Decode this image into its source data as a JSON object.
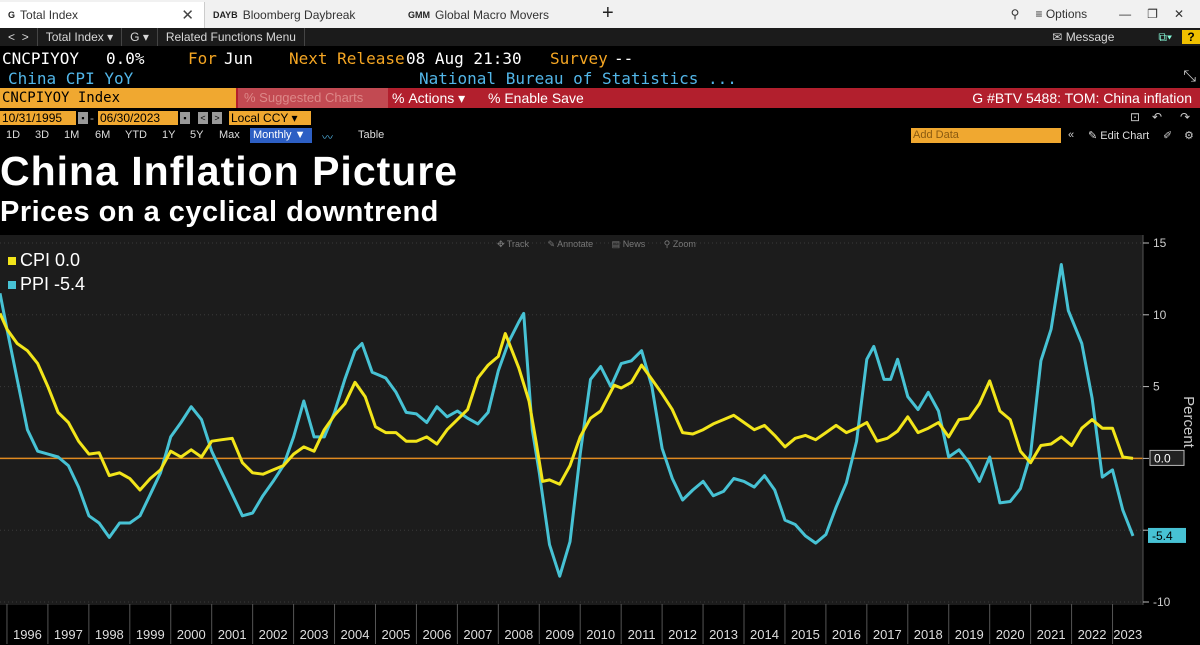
{
  "tabs": [
    {
      "code": "G",
      "label": "Total Index"
    },
    {
      "code": "DAYB",
      "label": "Bloomberg Daybreak"
    },
    {
      "code": "GMM",
      "label": "Global Macro Movers"
    }
  ],
  "window": {
    "options_label": "Options"
  },
  "menu": {
    "security": "Total Index",
    "function": "G",
    "related": "Related Functions Menu",
    "message": "Message",
    "help": "?"
  },
  "header": {
    "ticker": "CNCPIYOY",
    "value": "0.0%",
    "for_label": "For",
    "for_value": "Jun",
    "next_label": "Next Release",
    "next_value": "08 Aug 21:30",
    "survey_label": "Survey",
    "survey_value": "--",
    "name": "China CPI YoY",
    "source": "National Bureau of Statistics ..."
  },
  "command_bar": {
    "index": "CNCPIYOY Index",
    "suggested": "Suggested Charts",
    "actions": "Actions",
    "enable_save": "Enable Save",
    "chart_ref": "G #BTV 5488: TOM: China inflation"
  },
  "range": {
    "start": "10/31/1995",
    "end": "06/30/2023",
    "currency": "Local CCY"
  },
  "periods": [
    "1D",
    "3D",
    "1M",
    "6M",
    "YTD",
    "1Y",
    "5Y",
    "Max"
  ],
  "frequency": "Monthly",
  "table_label": "Table",
  "add_data_placeholder": "Add Data",
  "edit_chart_label": "Edit Chart",
  "chart_tools": [
    "Track",
    "Annotate",
    "News",
    "Zoom"
  ],
  "colors": {
    "cpi": "#f2e51a",
    "ppi": "#47c2d4",
    "zero_line": "#e08a20",
    "background": "#000000",
    "header_bar": "#b21f2d"
  },
  "chart_data": {
    "type": "line",
    "title": "China Inflation Picture",
    "subtitle": "Prices on a cyclical downtrend",
    "ylabel": "Percent",
    "ylim": [
      -10,
      15
    ],
    "yticks": [
      15,
      10,
      5,
      0,
      -5,
      -10
    ],
    "x_year_labels": [
      "1996",
      "1997",
      "1998",
      "1999",
      "2000",
      "2001",
      "2002",
      "2003",
      "2004",
      "2005",
      "2006",
      "2007",
      "2008",
      "2009",
      "2010",
      "2011",
      "2012",
      "2013",
      "2014",
      "2015",
      "2016",
      "2017",
      "2018",
      "2019",
      "2020",
      "2021",
      "2022",
      "2023"
    ],
    "last_values": {
      "cpi": "0.0",
      "ppi": "-5.4"
    },
    "series": [
      {
        "name": "CPI",
        "legend": "CPI 0.0",
        "points": [
          [
            1995.83,
            10.1
          ],
          [
            1996.0,
            9.0
          ],
          [
            1996.25,
            8.0
          ],
          [
            1996.5,
            7.5
          ],
          [
            1996.75,
            6.6
          ],
          [
            1997.0,
            5.0
          ],
          [
            1997.25,
            3.2
          ],
          [
            1997.5,
            2.5
          ],
          [
            1997.75,
            1.2
          ],
          [
            1998.0,
            0.3
          ],
          [
            1998.25,
            0.4
          ],
          [
            1998.5,
            -1.2
          ],
          [
            1998.75,
            -1.0
          ],
          [
            1999.0,
            -1.4
          ],
          [
            1999.25,
            -2.2
          ],
          [
            1999.5,
            -1.4
          ],
          [
            1999.75,
            -0.8
          ],
          [
            2000.0,
            0.5
          ],
          [
            2000.25,
            0.1
          ],
          [
            2000.5,
            0.6
          ],
          [
            2000.75,
            0.1
          ],
          [
            2001.0,
            1.2
          ],
          [
            2001.25,
            1.3
          ],
          [
            2001.5,
            1.4
          ],
          [
            2001.75,
            -0.3
          ],
          [
            2002.0,
            -1.0
          ],
          [
            2002.25,
            -1.1
          ],
          [
            2002.5,
            -0.8
          ],
          [
            2002.75,
            -0.5
          ],
          [
            2003.0,
            0.3
          ],
          [
            2003.25,
            0.8
          ],
          [
            2003.5,
            0.5
          ],
          [
            2003.75,
            2.0
          ],
          [
            2004.0,
            3.0
          ],
          [
            2004.25,
            3.8
          ],
          [
            2004.5,
            5.3
          ],
          [
            2004.75,
            4.3
          ],
          [
            2005.0,
            2.2
          ],
          [
            2005.25,
            1.8
          ],
          [
            2005.5,
            1.8
          ],
          [
            2005.75,
            1.2
          ],
          [
            2006.0,
            1.2
          ],
          [
            2006.25,
            1.5
          ],
          [
            2006.5,
            1.0
          ],
          [
            2006.75,
            2.0
          ],
          [
            2007.0,
            2.7
          ],
          [
            2007.25,
            3.4
          ],
          [
            2007.5,
            5.6
          ],
          [
            2007.75,
            6.5
          ],
          [
            2008.0,
            7.1
          ],
          [
            2008.17,
            8.7
          ],
          [
            2008.5,
            6.3
          ],
          [
            2008.75,
            4.0
          ],
          [
            2008.92,
            1.2
          ],
          [
            2009.08,
            -1.6
          ],
          [
            2009.25,
            -1.5
          ],
          [
            2009.5,
            -1.8
          ],
          [
            2009.75,
            -0.5
          ],
          [
            2010.0,
            1.5
          ],
          [
            2010.25,
            2.8
          ],
          [
            2010.5,
            3.3
          ],
          [
            2010.83,
            5.1
          ],
          [
            2011.0,
            4.9
          ],
          [
            2011.25,
            5.3
          ],
          [
            2011.5,
            6.5
          ],
          [
            2011.75,
            5.5
          ],
          [
            2012.0,
            4.5
          ],
          [
            2012.25,
            3.4
          ],
          [
            2012.5,
            1.8
          ],
          [
            2012.75,
            1.7
          ],
          [
            2013.0,
            2.0
          ],
          [
            2013.25,
            2.4
          ],
          [
            2013.5,
            2.7
          ],
          [
            2013.75,
            3.0
          ],
          [
            2014.0,
            2.5
          ],
          [
            2014.25,
            2.0
          ],
          [
            2014.5,
            2.3
          ],
          [
            2014.75,
            1.6
          ],
          [
            2015.0,
            0.8
          ],
          [
            2015.25,
            1.4
          ],
          [
            2015.5,
            1.6
          ],
          [
            2015.75,
            1.3
          ],
          [
            2016.0,
            1.8
          ],
          [
            2016.25,
            2.3
          ],
          [
            2016.5,
            1.8
          ],
          [
            2016.75,
            2.1
          ],
          [
            2017.0,
            2.5
          ],
          [
            2017.25,
            1.2
          ],
          [
            2017.5,
            1.4
          ],
          [
            2017.75,
            1.9
          ],
          [
            2018.0,
            2.9
          ],
          [
            2018.25,
            1.8
          ],
          [
            2018.5,
            2.1
          ],
          [
            2018.75,
            2.5
          ],
          [
            2019.0,
            1.5
          ],
          [
            2019.25,
            2.7
          ],
          [
            2019.5,
            2.8
          ],
          [
            2019.75,
            3.8
          ],
          [
            2020.0,
            5.4
          ],
          [
            2020.25,
            3.3
          ],
          [
            2020.5,
            2.7
          ],
          [
            2020.75,
            0.5
          ],
          [
            2021.0,
            -0.3
          ],
          [
            2021.25,
            0.9
          ],
          [
            2021.5,
            1.0
          ],
          [
            2021.75,
            1.5
          ],
          [
            2022.0,
            0.9
          ],
          [
            2022.25,
            2.1
          ],
          [
            2022.5,
            2.7
          ],
          [
            2022.75,
            2.1
          ],
          [
            2023.0,
            2.1
          ],
          [
            2023.25,
            0.1
          ],
          [
            2023.5,
            0.0
          ]
        ]
      },
      {
        "name": "PPI",
        "legend": "PPI -5.4",
        "points": [
          [
            1995.83,
            11.5
          ],
          [
            1996.0,
            9.0
          ],
          [
            1996.25,
            5.5
          ],
          [
            1996.5,
            2.0
          ],
          [
            1996.75,
            0.5
          ],
          [
            1997.0,
            0.3
          ],
          [
            1997.25,
            0.1
          ],
          [
            1997.5,
            -0.5
          ],
          [
            1997.75,
            -2.0
          ],
          [
            1998.0,
            -4.0
          ],
          [
            1998.25,
            -4.5
          ],
          [
            1998.5,
            -5.5
          ],
          [
            1998.75,
            -4.5
          ],
          [
            1999.0,
            -4.5
          ],
          [
            1999.25,
            -4.0
          ],
          [
            1999.5,
            -2.5
          ],
          [
            1999.75,
            -1.0
          ],
          [
            2000.0,
            1.5
          ],
          [
            2000.25,
            2.5
          ],
          [
            2000.5,
            3.6
          ],
          [
            2000.75,
            2.7
          ],
          [
            2001.0,
            0.5
          ],
          [
            2001.25,
            -1.0
          ],
          [
            2001.5,
            -2.5
          ],
          [
            2001.75,
            -4.0
          ],
          [
            2002.0,
            -3.8
          ],
          [
            2002.25,
            -2.6
          ],
          [
            2002.5,
            -1.6
          ],
          [
            2002.75,
            -0.5
          ],
          [
            2003.0,
            1.5
          ],
          [
            2003.25,
            4.0
          ],
          [
            2003.5,
            1.5
          ],
          [
            2003.75,
            1.5
          ],
          [
            2004.0,
            3.2
          ],
          [
            2004.25,
            5.5
          ],
          [
            2004.5,
            7.5
          ],
          [
            2004.67,
            8.0
          ],
          [
            2004.92,
            6.0
          ],
          [
            2005.25,
            5.6
          ],
          [
            2005.5,
            4.6
          ],
          [
            2005.75,
            3.2
          ],
          [
            2006.0,
            3.1
          ],
          [
            2006.25,
            2.5
          ],
          [
            2006.5,
            3.6
          ],
          [
            2006.75,
            2.9
          ],
          [
            2007.0,
            3.3
          ],
          [
            2007.25,
            2.8
          ],
          [
            2007.5,
            2.4
          ],
          [
            2007.75,
            3.2
          ],
          [
            2008.0,
            6.1
          ],
          [
            2008.25,
            8.1
          ],
          [
            2008.5,
            9.5
          ],
          [
            2008.62,
            10.1
          ],
          [
            2008.83,
            2.0
          ],
          [
            2009.0,
            -1.0
          ],
          [
            2009.25,
            -6.0
          ],
          [
            2009.5,
            -8.2
          ],
          [
            2009.75,
            -5.8
          ],
          [
            2010.0,
            0.3
          ],
          [
            2010.25,
            5.5
          ],
          [
            2010.5,
            6.4
          ],
          [
            2010.75,
            5.0
          ],
          [
            2011.0,
            6.6
          ],
          [
            2011.25,
            6.8
          ],
          [
            2011.5,
            7.5
          ],
          [
            2011.75,
            5.0
          ],
          [
            2012.0,
            0.7
          ],
          [
            2012.25,
            -1.4
          ],
          [
            2012.5,
            -2.9
          ],
          [
            2012.75,
            -2.2
          ],
          [
            2013.0,
            -1.6
          ],
          [
            2013.25,
            -2.6
          ],
          [
            2013.5,
            -2.3
          ],
          [
            2013.75,
            -1.4
          ],
          [
            2014.0,
            -1.6
          ],
          [
            2014.25,
            -2.0
          ],
          [
            2014.5,
            -1.2
          ],
          [
            2014.75,
            -2.2
          ],
          [
            2015.0,
            -4.3
          ],
          [
            2015.25,
            -4.6
          ],
          [
            2015.5,
            -5.4
          ],
          [
            2015.75,
            -5.9
          ],
          [
            2016.0,
            -5.3
          ],
          [
            2016.25,
            -3.4
          ],
          [
            2016.5,
            -1.7
          ],
          [
            2016.75,
            1.2
          ],
          [
            2017.0,
            6.9
          ],
          [
            2017.17,
            7.8
          ],
          [
            2017.42,
            5.5
          ],
          [
            2017.58,
            5.5
          ],
          [
            2017.75,
            6.9
          ],
          [
            2018.0,
            4.3
          ],
          [
            2018.25,
            3.4
          ],
          [
            2018.5,
            4.6
          ],
          [
            2018.75,
            3.3
          ],
          [
            2019.0,
            0.1
          ],
          [
            2019.25,
            0.6
          ],
          [
            2019.5,
            -0.3
          ],
          [
            2019.75,
            -1.6
          ],
          [
            2020.0,
            0.1
          ],
          [
            2020.25,
            -3.1
          ],
          [
            2020.5,
            -3.0
          ],
          [
            2020.75,
            -2.1
          ],
          [
            2021.0,
            0.3
          ],
          [
            2021.25,
            6.8
          ],
          [
            2021.5,
            9.0
          ],
          [
            2021.75,
            13.5
          ],
          [
            2021.92,
            10.3
          ],
          [
            2022.25,
            8.0
          ],
          [
            2022.5,
            4.2
          ],
          [
            2022.75,
            -1.3
          ],
          [
            2023.0,
            -0.8
          ],
          [
            2023.25,
            -3.6
          ],
          [
            2023.5,
            -5.4
          ]
        ]
      }
    ]
  }
}
